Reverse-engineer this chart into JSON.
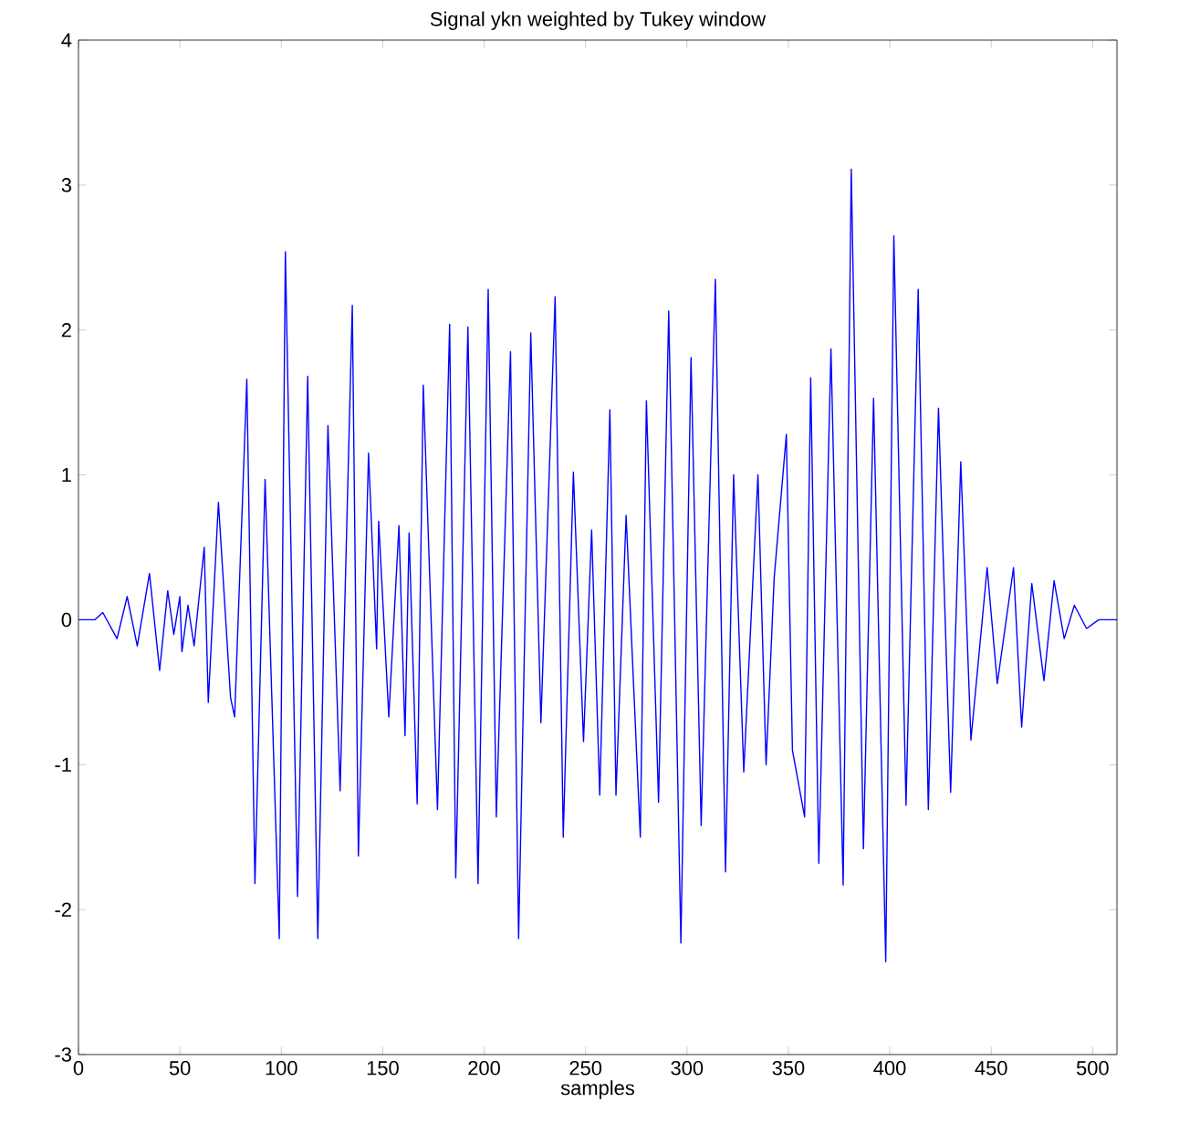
{
  "chart_data": {
    "type": "line",
    "title": "Signal ykn weighted by Tukey window",
    "xlabel": "samples",
    "xlim": [
      0,
      512
    ],
    "ylim": [
      -3,
      4
    ],
    "xticks": [
      0,
      50,
      100,
      150,
      200,
      250,
      300,
      350,
      400,
      450,
      500
    ],
    "yticks": [
      -3,
      -2,
      -1,
      0,
      1,
      2,
      3,
      4
    ],
    "grid": false,
    "line_style": "solid",
    "marker": "none",
    "series": [
      {
        "color": "#0000ff",
        "x": [
          0,
          8,
          12,
          19,
          24,
          29,
          35,
          40,
          44,
          47,
          50,
          51,
          54,
          57,
          62,
          64,
          69,
          75,
          77,
          83,
          87,
          92,
          99,
          102,
          108,
          113,
          118,
          123,
          129,
          135,
          138,
          143,
          147,
          148,
          153,
          158,
          161,
          163,
          167,
          170,
          177,
          183,
          186,
          192,
          197,
          202,
          206,
          213,
          217,
          223,
          228,
          235,
          239,
          244,
          249,
          253,
          257,
          262,
          265,
          270,
          277,
          280,
          286,
          291,
          297,
          302,
          307,
          314,
          319,
          323,
          328,
          335,
          339,
          343,
          349,
          352,
          358,
          361,
          365,
          371,
          377,
          381,
          387,
          392,
          398,
          402,
          408,
          414,
          419,
          424,
          430,
          435,
          440,
          448,
          453,
          461,
          465,
          470,
          476,
          481,
          486,
          491,
          497,
          503,
          512
        ],
        "values": [
          0,
          0,
          0.05,
          -0.13,
          0.16,
          -0.18,
          0.32,
          -0.35,
          0.2,
          -0.1,
          0.16,
          -0.22,
          0.1,
          -0.18,
          0.5,
          -0.57,
          0.81,
          -0.54,
          -0.67,
          1.66,
          -1.82,
          0.97,
          -2.2,
          2.54,
          -1.91,
          1.68,
          -2.2,
          1.34,
          -1.18,
          2.17,
          -1.63,
          1.15,
          -0.2,
          0.68,
          -0.67,
          0.65,
          -0.8,
          0.6,
          -1.27,
          1.62,
          -1.31,
          2.04,
          -1.78,
          2.02,
          -1.82,
          2.28,
          -1.36,
          1.85,
          -2.2,
          1.98,
          -0.71,
          2.23,
          -1.5,
          1.02,
          -0.84,
          0.62,
          -1.21,
          1.45,
          -1.21,
          0.72,
          -1.5,
          1.51,
          -1.26,
          2.13,
          -2.23,
          1.81,
          -1.42,
          2.35,
          -1.74,
          1.0,
          -1.05,
          1.0,
          -1.0,
          0.29,
          1.28,
          -0.9,
          -1.36,
          1.67,
          -1.68,
          1.87,
          -1.83,
          3.11,
          -1.58,
          1.53,
          -2.36,
          2.65,
          -1.28,
          2.28,
          -1.31,
          1.46,
          -1.19,
          1.09,
          -0.83,
          0.36,
          -0.44,
          0.36,
          -0.74,
          0.25,
          -0.42,
          0.27,
          -0.13,
          0.1,
          -0.06,
          0,
          0
        ]
      }
    ]
  }
}
